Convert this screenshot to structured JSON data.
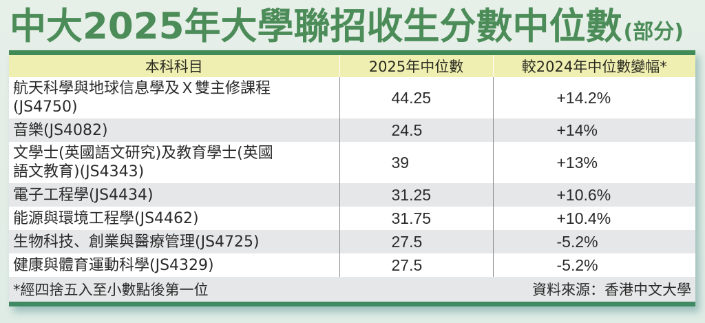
{
  "title": {
    "main": "中大2025年大學聯招收生分數中位數",
    "sub": "(部分)"
  },
  "colors": {
    "title_green": "#4b8c58",
    "rule_green": "#3f8a56",
    "header_bg": "#eeefb0",
    "row_gray": "#e6e7e8",
    "row_white": "#ffffff",
    "page_bg": "#e6efe8"
  },
  "table": {
    "headers": [
      "本科科目",
      "2025年中位數",
      "較2024年中位數變幅*"
    ],
    "rows": [
      {
        "programme": "航天科學與地球信息學及Ｘ雙主修課程(JS4750)",
        "programme_line1": "航天科學與地球信息學及Ｘ雙主修課程",
        "programme_line2": "(JS4750)",
        "median_2025": "44.25",
        "change_vs_2024": "+14.2%"
      },
      {
        "programme": "音樂(JS4082)",
        "median_2025": "24.5",
        "change_vs_2024": "+14%"
      },
      {
        "programme": "文學士(英國語文研究)及教育學士(英國語文教育)(JS4343)",
        "programme_line1": "文學士(英國語文研究)及教育學士(英國",
        "programme_line2": "語文教育)(JS4343)",
        "median_2025": "39",
        "change_vs_2024": "+13%"
      },
      {
        "programme": "電子工程學(JS4434)",
        "median_2025": "31.25",
        "change_vs_2024": "+10.6%"
      },
      {
        "programme": "能源與環境工程學(JS4462)",
        "median_2025": "31.75",
        "change_vs_2024": "+10.4%"
      },
      {
        "programme": "生物科技、創業與醫療管理(JS4725)",
        "median_2025": "27.5",
        "change_vs_2024": "-5.2%"
      },
      {
        "programme": "健康與體育運動科學(JS4329)",
        "median_2025": "27.5",
        "change_vs_2024": "-5.2%"
      }
    ]
  },
  "footer": {
    "note": "*經四捨五入至小數點後第一位",
    "source": "資料來源：香港中文大學"
  }
}
